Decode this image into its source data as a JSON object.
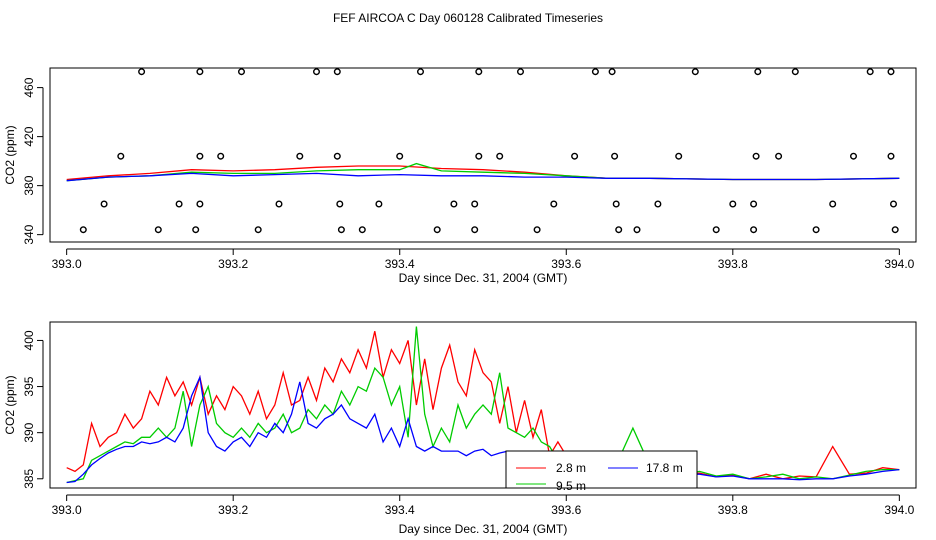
{
  "title": "FEF AIRCOA C  Day 060128  Calibrated Timeseries",
  "chart_data": [
    {
      "type": "scatter+line",
      "title": "",
      "xlabel": "Day since Dec. 31, 2004 (GMT)",
      "ylabel": "CO2 (ppm)",
      "xlim": [
        392.98,
        394.02
      ],
      "ylim": [
        334,
        476
      ],
      "xticks": [
        "393.0",
        "393.2",
        "393.4",
        "393.6",
        "393.8",
        "394.0"
      ],
      "xtick_values": [
        393.0,
        393.2,
        393.4,
        393.6,
        393.8,
        394.0
      ],
      "yticks": [
        "340",
        "380",
        "420",
        "460"
      ],
      "ytick_values": [
        340,
        380,
        420,
        460
      ],
      "calibration_points": [
        {
          "x": 393.02,
          "y": 344
        },
        {
          "x": 393.045,
          "y": 365
        },
        {
          "x": 393.065,
          "y": 404
        },
        {
          "x": 393.09,
          "y": 473
        },
        {
          "x": 393.11,
          "y": 344
        },
        {
          "x": 393.135,
          "y": 365
        },
        {
          "x": 393.155,
          "y": 344
        },
        {
          "x": 393.16,
          "y": 365
        },
        {
          "x": 393.16,
          "y": 404
        },
        {
          "x": 393.16,
          "y": 473
        },
        {
          "x": 393.185,
          "y": 404
        },
        {
          "x": 393.21,
          "y": 473
        },
        {
          "x": 393.23,
          "y": 344
        },
        {
          "x": 393.255,
          "y": 365
        },
        {
          "x": 393.28,
          "y": 404
        },
        {
          "x": 393.3,
          "y": 473
        },
        {
          "x": 393.325,
          "y": 473
        },
        {
          "x": 393.325,
          "y": 404
        },
        {
          "x": 393.328,
          "y": 365
        },
        {
          "x": 393.33,
          "y": 344
        },
        {
          "x": 393.355,
          "y": 344
        },
        {
          "x": 393.375,
          "y": 365
        },
        {
          "x": 393.4,
          "y": 404
        },
        {
          "x": 393.425,
          "y": 473
        },
        {
          "x": 393.445,
          "y": 344
        },
        {
          "x": 393.465,
          "y": 365
        },
        {
          "x": 393.49,
          "y": 365
        },
        {
          "x": 393.49,
          "y": 344
        },
        {
          "x": 393.495,
          "y": 404
        },
        {
          "x": 393.495,
          "y": 473
        },
        {
          "x": 393.52,
          "y": 404
        },
        {
          "x": 393.545,
          "y": 473
        },
        {
          "x": 393.565,
          "y": 344
        },
        {
          "x": 393.585,
          "y": 365
        },
        {
          "x": 393.61,
          "y": 404
        },
        {
          "x": 393.635,
          "y": 473
        },
        {
          "x": 393.655,
          "y": 473
        },
        {
          "x": 393.658,
          "y": 404
        },
        {
          "x": 393.66,
          "y": 365
        },
        {
          "x": 393.663,
          "y": 344
        },
        {
          "x": 393.685,
          "y": 344
        },
        {
          "x": 393.71,
          "y": 365
        },
        {
          "x": 393.735,
          "y": 404
        },
        {
          "x": 393.755,
          "y": 473
        },
        {
          "x": 393.78,
          "y": 344
        },
        {
          "x": 393.8,
          "y": 365
        },
        {
          "x": 393.825,
          "y": 344
        },
        {
          "x": 393.825,
          "y": 365
        },
        {
          "x": 393.828,
          "y": 404
        },
        {
          "x": 393.83,
          "y": 473
        },
        {
          "x": 393.855,
          "y": 404
        },
        {
          "x": 393.875,
          "y": 473
        },
        {
          "x": 393.9,
          "y": 344
        },
        {
          "x": 393.92,
          "y": 365
        },
        {
          "x": 393.945,
          "y": 404
        },
        {
          "x": 393.965,
          "y": 473
        },
        {
          "x": 393.99,
          "y": 473
        },
        {
          "x": 393.99,
          "y": 404
        },
        {
          "x": 393.993,
          "y": 365
        },
        {
          "x": 393.995,
          "y": 344
        }
      ],
      "series": [
        {
          "name": "2.8 m",
          "color": "#ff0000",
          "x": [
            393.0,
            393.05,
            393.1,
            393.15,
            393.2,
            393.25,
            393.3,
            393.35,
            393.4,
            393.45,
            393.5,
            393.55,
            393.6,
            393.65,
            393.7,
            393.8,
            393.9,
            394.0
          ],
          "y": [
            385,
            388,
            390,
            393,
            392,
            393,
            395,
            396,
            396,
            394,
            393,
            391,
            388,
            386,
            386,
            385,
            385,
            386
          ]
        },
        {
          "name": "9.5 m",
          "color": "#00cc00",
          "x": [
            393.0,
            393.05,
            393.1,
            393.15,
            393.2,
            393.25,
            393.3,
            393.35,
            393.4,
            393.42,
            393.45,
            393.5,
            393.55,
            393.6,
            393.65,
            393.7,
            393.8,
            393.9,
            394.0
          ],
          "y": [
            384,
            387,
            388,
            391,
            390,
            390,
            392,
            393,
            393,
            398,
            392,
            391,
            390,
            388,
            386,
            386,
            385,
            385,
            386
          ]
        },
        {
          "name": "17.8 m",
          "color": "#0000ff",
          "x": [
            393.0,
            393.05,
            393.1,
            393.15,
            393.2,
            393.25,
            393.3,
            393.35,
            393.4,
            393.45,
            393.5,
            393.55,
            393.6,
            393.65,
            393.7,
            393.8,
            393.9,
            394.0
          ],
          "y": [
            384,
            387,
            388,
            390,
            388,
            389,
            390,
            388,
            389,
            388,
            388,
            387,
            387,
            386,
            386,
            385,
            385,
            386
          ]
        }
      ]
    },
    {
      "type": "line",
      "title": "",
      "xlabel": "Day since Dec. 31, 2004 (GMT)",
      "ylabel": "CO2 (ppm)",
      "xlim": [
        392.98,
        394.02
      ],
      "ylim": [
        384,
        402
      ],
      "xticks": [
        "393.0",
        "393.2",
        "393.4",
        "393.6",
        "393.8",
        "394.0"
      ],
      "xtick_values": [
        393.0,
        393.2,
        393.4,
        393.6,
        393.8,
        394.0
      ],
      "yticks": [
        "385",
        "390",
        "395",
        "400"
      ],
      "ytick_values": [
        385,
        390,
        395,
        400
      ],
      "legend_position": "bottom-center",
      "series": [
        {
          "name": "2.8 m",
          "color": "#ff0000",
          "x": [
            393.0,
            393.01,
            393.02,
            393.03,
            393.04,
            393.05,
            393.06,
            393.07,
            393.08,
            393.09,
            393.1,
            393.11,
            393.12,
            393.13,
            393.14,
            393.15,
            393.16,
            393.17,
            393.18,
            393.19,
            393.2,
            393.21,
            393.22,
            393.23,
            393.24,
            393.25,
            393.26,
            393.27,
            393.28,
            393.29,
            393.3,
            393.31,
            393.32,
            393.33,
            393.34,
            393.35,
            393.36,
            393.37,
            393.38,
            393.39,
            393.4,
            393.41,
            393.42,
            393.43,
            393.44,
            393.45,
            393.46,
            393.47,
            393.48,
            393.49,
            393.5,
            393.51,
            393.52,
            393.53,
            393.54,
            393.55,
            393.56,
            393.57,
            393.58,
            393.59,
            393.6,
            393.62,
            393.64,
            393.66,
            393.68,
            393.7,
            393.72,
            393.74,
            393.76,
            393.78,
            393.8,
            393.82,
            393.84,
            393.86,
            393.88,
            393.9,
            393.92,
            393.94,
            393.96,
            393.98,
            394.0
          ],
          "y": [
            386.2,
            385.8,
            386.5,
            391.0,
            388.5,
            389.5,
            390.0,
            392.0,
            390.5,
            391.5,
            394.5,
            393.0,
            396.0,
            394.0,
            395.5,
            393.0,
            396.0,
            392.0,
            394.0,
            392.5,
            395.0,
            394.0,
            392.0,
            394.5,
            391.5,
            393.0,
            396.5,
            393.0,
            393.5,
            396.0,
            393.5,
            397.0,
            395.5,
            398.0,
            396.5,
            399.0,
            397.0,
            401.0,
            396.0,
            399.0,
            397.5,
            400.0,
            393.0,
            398.0,
            392.5,
            397.0,
            399.5,
            395.5,
            394.0,
            399.0,
            396.5,
            395.5,
            391.0,
            395.0,
            390.0,
            393.5,
            389.5,
            392.5,
            387.5,
            389.0,
            387.5,
            387.0,
            386.5,
            386.8,
            386.0,
            386.2,
            385.8,
            385.5,
            385.6,
            385.2,
            385.4,
            385.0,
            385.5,
            385.0,
            385.3,
            385.2,
            388.5,
            385.5,
            385.6,
            386.2,
            386.0
          ]
        },
        {
          "name": "9.5 m",
          "color": "#00cc00",
          "x": [
            393.0,
            393.01,
            393.02,
            393.03,
            393.04,
            393.05,
            393.06,
            393.07,
            393.08,
            393.09,
            393.1,
            393.11,
            393.12,
            393.13,
            393.14,
            393.15,
            393.16,
            393.17,
            393.18,
            393.19,
            393.2,
            393.21,
            393.22,
            393.23,
            393.24,
            393.25,
            393.26,
            393.27,
            393.28,
            393.29,
            393.3,
            393.31,
            393.32,
            393.33,
            393.34,
            393.35,
            393.36,
            393.37,
            393.38,
            393.39,
            393.4,
            393.41,
            393.42,
            393.43,
            393.44,
            393.45,
            393.46,
            393.47,
            393.48,
            393.49,
            393.5,
            393.51,
            393.52,
            393.53,
            393.54,
            393.55,
            393.56,
            393.57,
            393.58,
            393.59,
            393.6,
            393.62,
            393.64,
            393.66,
            393.68,
            393.7,
            393.72,
            393.74,
            393.76,
            393.78,
            393.8,
            393.82,
            393.84,
            393.86,
            393.88,
            393.9,
            393.92,
            393.94,
            393.96,
            393.98,
            394.0
          ],
          "y": [
            384.6,
            384.8,
            385.0,
            387.0,
            387.5,
            388.0,
            388.5,
            389.0,
            388.8,
            389.5,
            389.5,
            390.5,
            389.5,
            390.5,
            394.5,
            388.5,
            393.0,
            395.0,
            391.0,
            390.0,
            389.5,
            390.5,
            389.5,
            391.0,
            390.0,
            390.5,
            392.0,
            390.0,
            390.5,
            392.5,
            391.5,
            393.0,
            392.0,
            394.5,
            393.0,
            395.0,
            394.5,
            397.0,
            396.0,
            393.0,
            395.0,
            389.5,
            401.5,
            392.0,
            388.5,
            390.5,
            389.0,
            393.0,
            390.5,
            392.0,
            393.0,
            392.0,
            396.5,
            390.5,
            390.0,
            389.5,
            390.5,
            389.0,
            388.5,
            387.0,
            387.5,
            386.5,
            386.5,
            386.5,
            390.5,
            386.5,
            386.0,
            385.5,
            385.8,
            385.3,
            385.5,
            385.0,
            385.2,
            385.5,
            385.0,
            385.2,
            385.0,
            385.4,
            385.8,
            386.0,
            386.0
          ]
        },
        {
          "name": "17.8 m",
          "color": "#0000ff",
          "x": [
            393.0,
            393.01,
            393.02,
            393.03,
            393.04,
            393.05,
            393.06,
            393.07,
            393.08,
            393.09,
            393.1,
            393.11,
            393.12,
            393.13,
            393.14,
            393.15,
            393.16,
            393.17,
            393.18,
            393.19,
            393.2,
            393.21,
            393.22,
            393.23,
            393.24,
            393.25,
            393.26,
            393.27,
            393.28,
            393.29,
            393.3,
            393.31,
            393.32,
            393.33,
            393.34,
            393.35,
            393.36,
            393.37,
            393.38,
            393.39,
            393.4,
            393.41,
            393.42,
            393.43,
            393.44,
            393.45,
            393.46,
            393.47,
            393.48,
            393.49,
            393.5,
            393.51,
            393.52,
            393.53,
            393.54,
            393.55,
            393.56,
            393.57,
            393.58,
            393.59,
            393.6,
            393.62,
            393.64,
            393.66,
            393.68,
            393.7,
            393.72,
            393.74,
            393.76,
            393.78,
            393.8,
            393.82,
            393.84,
            393.86,
            393.88,
            393.9,
            393.92,
            393.94,
            393.96,
            393.98,
            394.0
          ],
          "y": [
            384.6,
            384.7,
            385.5,
            386.5,
            387.2,
            387.8,
            388.2,
            388.5,
            388.5,
            389.0,
            388.8,
            389.0,
            389.5,
            389.0,
            390.5,
            394.0,
            396.0,
            390.0,
            388.5,
            388.0,
            389.0,
            389.5,
            388.5,
            390.0,
            389.5,
            391.0,
            390.0,
            392.0,
            395.5,
            391.0,
            390.5,
            391.5,
            392.0,
            393.0,
            391.5,
            391.0,
            390.5,
            392.0,
            389.0,
            390.5,
            388.5,
            391.5,
            388.5,
            388.0,
            388.5,
            388.0,
            388.0,
            388.0,
            387.5,
            388.0,
            388.2,
            387.5,
            387.8,
            388.0,
            387.5,
            387.5,
            387.0,
            387.0,
            387.0,
            387.2,
            386.8,
            386.5,
            386.2,
            386.5,
            386.0,
            386.2,
            385.8,
            385.5,
            385.5,
            385.2,
            385.3,
            385.0,
            385.0,
            385.0,
            384.9,
            385.0,
            385.0,
            385.3,
            385.5,
            385.8,
            386.0
          ]
        }
      ]
    }
  ]
}
